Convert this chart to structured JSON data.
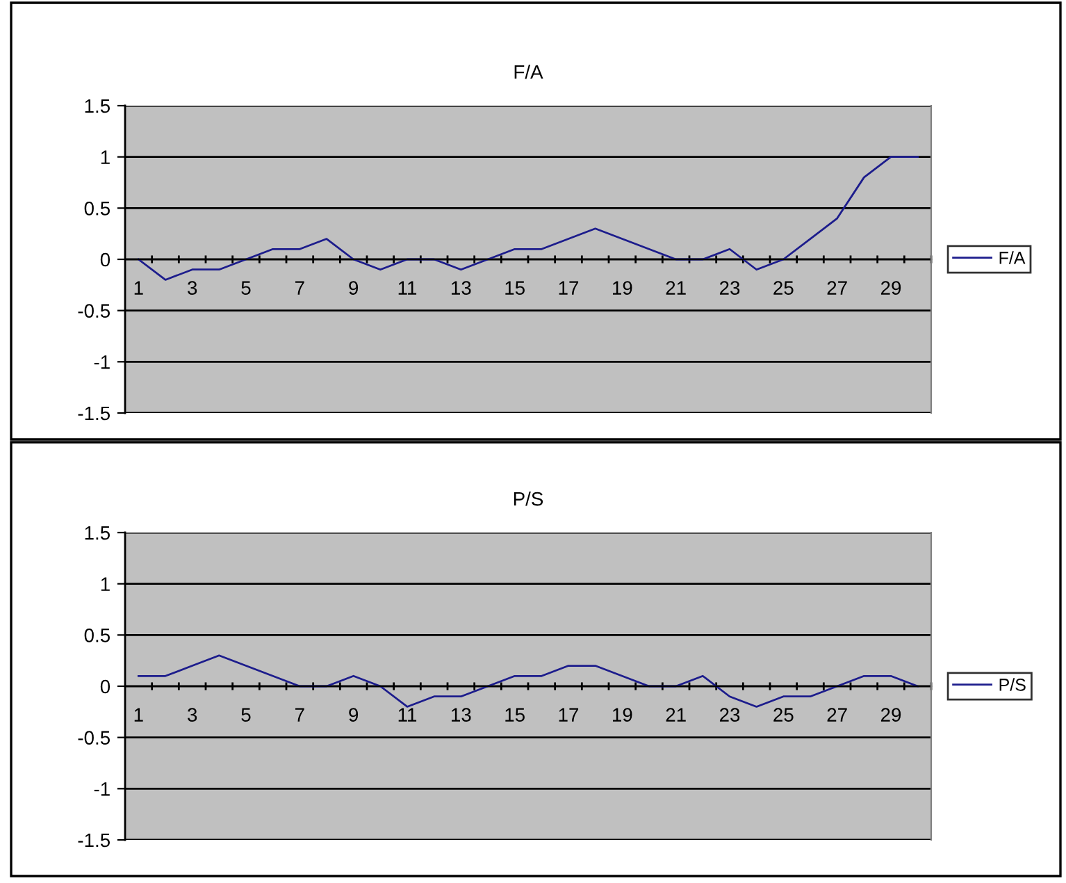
{
  "chart_data": [
    {
      "type": "line",
      "title": "F/A",
      "categories": [
        "1",
        null,
        "3",
        null,
        "5",
        null,
        "7",
        null,
        "9",
        null,
        "11",
        null,
        "13",
        null,
        "15",
        null,
        "17",
        null,
        "19",
        null,
        "21",
        null,
        "23",
        null,
        "25",
        null,
        "27",
        null,
        "29",
        null
      ],
      "series": [
        {
          "name": "F/A",
          "color": "#1c1c8c",
          "values": [
            0,
            -0.2,
            -0.1,
            -0.1,
            0,
            0.1,
            0.1,
            0.2,
            0,
            -0.1,
            0,
            0,
            -0.1,
            0,
            0.1,
            0.1,
            0.2,
            0.3,
            0.2,
            0.1,
            0,
            0,
            0.1,
            -0.1,
            0,
            0.2,
            0.4,
            0.8,
            1,
            1
          ]
        }
      ],
      "ylim": [
        -1.5,
        1.5
      ],
      "yticks": [
        -1.5,
        -1,
        -0.5,
        0,
        0.5,
        1,
        1.5
      ],
      "grid": "y",
      "legend": "right",
      "marker": "none",
      "line_style": "solid"
    },
    {
      "type": "line",
      "title": "P/S",
      "categories": [
        "1",
        null,
        "3",
        null,
        "5",
        null,
        "7",
        null,
        "9",
        null,
        "11",
        null,
        "13",
        null,
        "15",
        null,
        "17",
        null,
        "19",
        null,
        "21",
        null,
        "23",
        null,
        "25",
        null,
        "27",
        null,
        "29",
        null
      ],
      "series": [
        {
          "name": "P/S",
          "color": "#1c1c8c",
          "values": [
            0.1,
            0.1,
            0.2,
            0.3,
            0.2,
            0.1,
            0,
            0,
            0.1,
            0,
            -0.2,
            -0.1,
            -0.1,
            0,
            0.1,
            0.1,
            0.2,
            0.2,
            0.1,
            0,
            0,
            0.1,
            -0.1,
            -0.2,
            -0.1,
            -0.1,
            0,
            0.1,
            0.1,
            0
          ]
        }
      ],
      "ylim": [
        -1.5,
        1.5
      ],
      "yticks": [
        -1.5,
        -1,
        -0.5,
        0,
        0.5,
        1,
        1.5
      ],
      "grid": "y",
      "legend": "right",
      "marker": "none",
      "line_style": "solid"
    }
  ]
}
